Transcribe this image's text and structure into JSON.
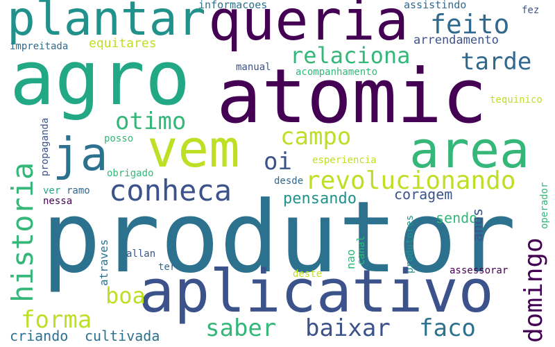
{
  "words": {
    "produtor": {
      "text": "produtor",
      "color": "#2c728e"
    },
    "atomic": {
      "text": "atomic",
      "color": "#440154"
    },
    "agro": {
      "text": "agro",
      "color": "#22a884"
    },
    "aplicativo": {
      "text": "aplicativo",
      "color": "#3b528b"
    },
    "queria": {
      "text": "queria",
      "color": "#440154"
    },
    "plantar": {
      "text": "plantar",
      "color": "#21918c"
    },
    "vem": {
      "text": "vem",
      "color": "#bddf26"
    },
    "area": {
      "text": "area",
      "color": "#35b779"
    },
    "ja": {
      "text": "ja",
      "color": "#2c728e"
    },
    "historia": {
      "text": "historia",
      "color": "#35b779"
    },
    "conheca": {
      "text": "conheca",
      "color": "#3b528b"
    },
    "revolucionando": {
      "text": "revolucionando",
      "color": "#bddf26"
    },
    "domingo": {
      "text": "domingo",
      "color": "#440154"
    },
    "baixar": {
      "text": "baixar",
      "color": "#3b528b"
    },
    "faco": {
      "text": "faco",
      "color": "#2c728e"
    },
    "saber": {
      "text": "saber",
      "color": "#35b779"
    },
    "forma": {
      "text": "forma",
      "color": "#bddf26"
    },
    "boa": {
      "text": "boa",
      "color": "#bddf26"
    },
    "relaciona": {
      "text": "relaciona",
      "color": "#35b779"
    },
    "tarde": {
      "text": "tarde",
      "color": "#31688e"
    },
    "feito": {
      "text": "feito",
      "color": "#31688e"
    },
    "otimo": {
      "text": "otimo",
      "color": "#35b779"
    },
    "campo": {
      "text": "campo",
      "color": "#bddf26"
    },
    "oi": {
      "text": "oi",
      "color": "#3b528b"
    },
    "pensando": {
      "text": "pensando",
      "color": "#21918c"
    },
    "coragem": {
      "text": "coragem",
      "color": "#3b528b"
    },
    "sendo": {
      "text": "sendo",
      "color": "#35b779"
    },
    "anos": {
      "text": "anos",
      "color": "#3b528b"
    },
    "criando": {
      "text": "criando",
      "color": "#2c728e"
    },
    "cultivada": {
      "text": "cultivada",
      "color": "#2c728e"
    },
    "equitares": {
      "text": "equitares",
      "color": "#bddf26"
    },
    "arrendamento": {
      "text": "arrendamento",
      "color": "#3b528b"
    },
    "informacoes": {
      "text": "informacoes",
      "color": "#2c728e"
    },
    "assistindo": {
      "text": "assistindo",
      "color": "#31688e"
    },
    "fez": {
      "text": "fez",
      "color": "#3b528b"
    },
    "impreitada": {
      "text": "impreitada",
      "color": "#31688e"
    },
    "manual": {
      "text": "manual",
      "color": "#3b528b"
    },
    "acompanhamento": {
      "text": "acompanhamento",
      "color": "#35b779"
    },
    "tequinico": {
      "text": "tequinico",
      "color": "#bddf26"
    },
    "posso": {
      "text": "posso",
      "color": "#35b779"
    },
    "obrigado": {
      "text": "obrigado",
      "color": "#35b779"
    },
    "esperiencia": {
      "text": "esperiencia",
      "color": "#bddf26"
    },
    "desde": {
      "text": "desde",
      "color": "#31688e"
    },
    "ver": {
      "text": "ver",
      "color": "#22a884"
    },
    "ramo": {
      "text": "ramo",
      "color": "#31688e"
    },
    "nessa": {
      "text": "nessa",
      "color": "#440154"
    },
    "propaganda": {
      "text": "propaganda",
      "color": "#3b528b"
    },
    "atraves": {
      "text": "atraves",
      "color": "#2c728e"
    },
    "allan": {
      "text": "allan",
      "color": "#3b528b"
    },
    "ter": {
      "text": "ter",
      "color": "#31688e"
    },
    "deste": {
      "text": "deste",
      "color": "#bddf26"
    },
    "assessorar": {
      "text": "assessorar",
      "color": "#440154"
    },
    "nao": {
      "text": "nao",
      "color": "#35b779"
    },
    "canal": {
      "text": "canal",
      "color": "#35b779"
    },
    "produtores": {
      "text": "produtores",
      "color": "#21918c"
    },
    "operador": {
      "text": "operador",
      "color": "#35b779"
    }
  }
}
